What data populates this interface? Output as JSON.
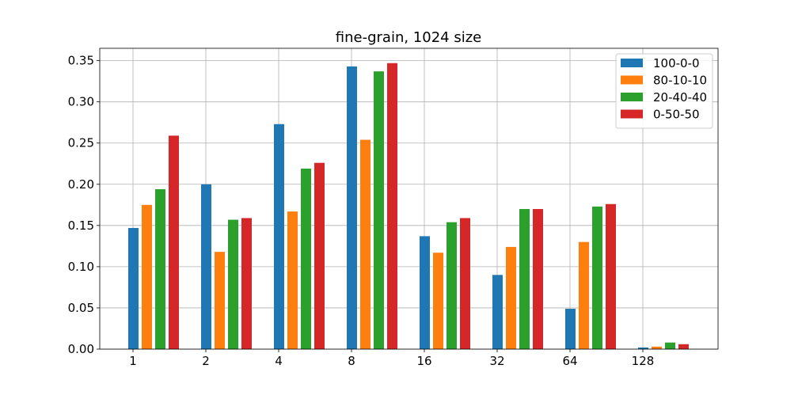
{
  "chart_data": {
    "type": "bar",
    "title": "fine-grain, 1024 size",
    "xlabel": "",
    "ylabel": "",
    "categories": [
      "1",
      "2",
      "4",
      "8",
      "16",
      "32",
      "64",
      "128"
    ],
    "series": [
      {
        "name": "100-0-0",
        "color": "#1f77b4",
        "values": [
          0.147,
          0.2,
          0.273,
          0.343,
          0.137,
          0.09,
          0.049,
          0.002
        ]
      },
      {
        "name": "80-10-10",
        "color": "#ff7f0e",
        "values": [
          0.175,
          0.118,
          0.167,
          0.254,
          0.117,
          0.124,
          0.13,
          0.003
        ]
      },
      {
        "name": "20-40-40",
        "color": "#2ca02c",
        "values": [
          0.194,
          0.157,
          0.219,
          0.337,
          0.154,
          0.17,
          0.173,
          0.008
        ]
      },
      {
        "name": "0-50-50",
        "color": "#d62728",
        "values": [
          0.259,
          0.159,
          0.226,
          0.347,
          0.159,
          0.17,
          0.176,
          0.006
        ]
      }
    ],
    "ylim": [
      0,
      0.365
    ],
    "yticks": [
      "0.00",
      "0.05",
      "0.10",
      "0.15",
      "0.20",
      "0.25",
      "0.30",
      "0.35"
    ],
    "grid": true,
    "legend_position": "top-right"
  }
}
